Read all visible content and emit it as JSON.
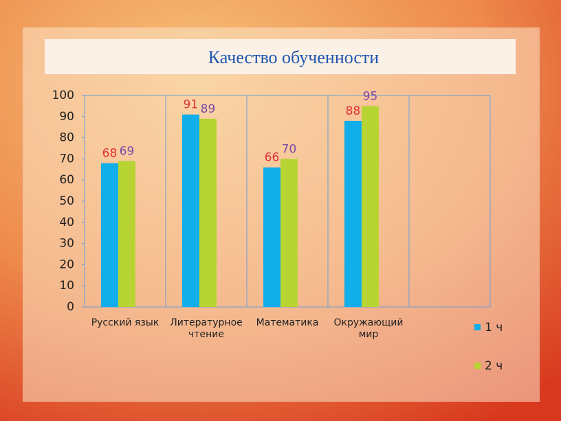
{
  "chart_data": {
    "type": "bar",
    "title": "Качество обученности",
    "categories": [
      "Русский язык",
      "Литературное\nчтение",
      "Математика",
      "Окружающий\nмир",
      null
    ],
    "series": [
      {
        "name": "1 ч",
        "color": "#12aee9",
        "label_color": "#e0303a",
        "values": [
          68,
          91,
          66,
          88,
          null
        ]
      },
      {
        "name": "2 ч",
        "color": "#b8d433",
        "label_color": "#7a4aa8",
        "values": [
          69,
          89,
          70,
          95,
          null
        ]
      }
    ],
    "ylim": [
      0,
      100
    ],
    "yticks": [
      0,
      10,
      20,
      30,
      40,
      50,
      60,
      70,
      80,
      90,
      100
    ],
    "grid": false,
    "legend": "right"
  }
}
